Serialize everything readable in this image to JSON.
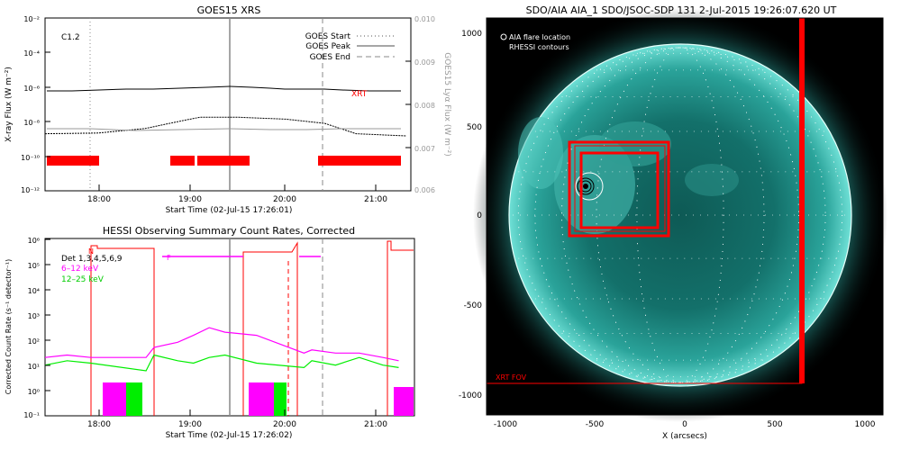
{
  "chart_data": [
    {
      "type": "line",
      "title": "GOES15 XRS",
      "xlabel": "Start Time (02-Jul-15 17:26:01)",
      "ylabel": "X-ray Flux (W m⁻²)",
      "ylabel_right": "GOES15 Lyα Flux (W m⁻²)",
      "x_ticks": [
        "18:00",
        "19:00",
        "20:00",
        "21:00"
      ],
      "y_ticks": [
        "10⁻²",
        "10⁻⁴",
        "10⁻⁶",
        "10⁻⁸",
        "10⁻¹⁰",
        "10⁻¹²"
      ],
      "y_ticks_right": [
        "0.010",
        "0.009",
        "0.008",
        "0.007",
        "0.006"
      ],
      "ylim_right": [
        0.006,
        0.01
      ],
      "y_scale": "log",
      "ylim": [
        1e-12,
        0.01
      ],
      "class_label": "C1.2",
      "legend": [
        {
          "label": "GOES Start",
          "style": "dotted"
        },
        {
          "label": "GOES Peak",
          "style": "solid"
        },
        {
          "label": "GOES End",
          "style": "dashed"
        }
      ],
      "legend_position": "top-right",
      "annotations": [
        "XRT"
      ],
      "events": {
        "start": "17:54",
        "peak": "19:26",
        "end": "20:25"
      },
      "series": [
        {
          "color": "#000000",
          "x": [
            "17:26",
            "18:00",
            "18:30",
            "19:00",
            "19:26",
            "20:00",
            "20:30",
            "21:00",
            "21:17"
          ],
          "values": [
            7e-07,
            7.5e-07,
            8e-07,
            8.5e-07,
            1e-06,
            9e-07,
            8e-07,
            7e-07,
            7e-07
          ]
        },
        {
          "color": "#000000",
          "x": [
            "17:26",
            "18:00",
            "18:30",
            "18:55",
            "19:05",
            "19:30",
            "20:00",
            "20:25",
            "20:45",
            "21:17"
          ],
          "values": [
            2e-09,
            2.2e-09,
            4e-09,
            1.2e-08,
            1.8e-08,
            1.8e-08,
            1.4e-08,
            8e-09,
            2e-09,
            1.5e-09
          ]
        },
        {
          "color": "#888888",
          "x": [
            "17:26",
            "21:17"
          ],
          "values": [
            3e-09,
            3e-09
          ]
        }
      ],
      "xrt_intervals": [
        [
          "17:26",
          "18:00"
        ],
        [
          "18:47",
          "19:00"
        ],
        [
          "19:05",
          "19:40"
        ],
        [
          "20:26",
          "21:17"
        ]
      ]
    },
    {
      "type": "line",
      "title": "HESSI Observing Summary Count Rates, Corrected",
      "xlabel": "Start Time (02-Jul-15 17:26:02)",
      "ylabel": "Corrected Count Rate (s⁻¹ detector⁻¹)",
      "x_ticks": [
        "18:00",
        "19:00",
        "20:00",
        "21:00"
      ],
      "y_ticks": [
        "10⁶",
        "10⁵",
        "10⁴",
        "10³",
        "10²",
        "10¹",
        "10⁰",
        "10⁻¹"
      ],
      "y_scale": "log",
      "ylim": [
        0.1,
        1000000.0
      ],
      "legend": [
        {
          "label": "Det 1,3,4,5,6,9",
          "color": "#000000"
        },
        {
          "label": "6–12 keV",
          "color": "#ff00ff"
        },
        {
          "label": "12–25 keV",
          "color": "#00ee00"
        }
      ],
      "legend_position": "top-left",
      "flag_labels": [
        "N",
        "F"
      ],
      "series": [
        {
          "name": "6–12 keV",
          "color": "#ff00ff",
          "x": [
            "17:26",
            "17:40",
            "17:55",
            "18:30",
            "18:35",
            "18:50",
            "19:00",
            "19:10",
            "19:20",
            "19:40",
            "20:10",
            "20:15",
            "20:30",
            "20:45",
            "21:00",
            "21:10"
          ],
          "values": [
            20,
            25,
            20,
            20,
            50,
            80,
            150,
            300,
            200,
            150,
            30,
            40,
            30,
            30,
            20,
            15
          ]
        },
        {
          "name": "12–25 keV",
          "color": "#00ee00",
          "x": [
            "17:26",
            "17:40",
            "17:55",
            "18:30",
            "18:35",
            "18:50",
            "19:00",
            "19:10",
            "19:20",
            "19:40",
            "20:10",
            "20:15",
            "20:30",
            "20:45",
            "21:00",
            "21:10"
          ],
          "values": [
            10,
            15,
            12,
            6,
            25,
            15,
            12,
            20,
            25,
            12,
            8,
            15,
            10,
            20,
            10,
            8
          ]
        }
      ]
    },
    {
      "type": "image",
      "title": "SDO/AIA AIA_1 SDO/JSOC-SDP 131  2-Jul-2015 19:26:07.620 UT",
      "xlabel": "X (arcsecs)",
      "x_ticks": [
        "-1000",
        "-500",
        "0",
        "500",
        "1000"
      ],
      "y_ticks": [
        "1000",
        "500",
        "0",
        "-500",
        "-1000"
      ],
      "legend": [
        "AIA flare location",
        "RHESSI contours"
      ],
      "legend_position": "top-left",
      "annotations": [
        "XRT FOV"
      ]
    }
  ]
}
